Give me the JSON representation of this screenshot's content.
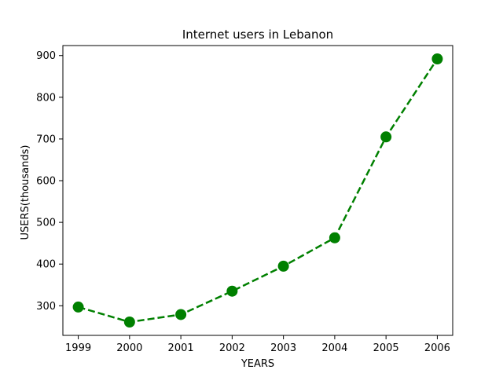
{
  "chart_data": {
    "type": "line",
    "title": "Internet users in Lebanon",
    "xlabel": "YEARS",
    "ylabel": "USERS(thousands)",
    "x": [
      1999,
      2000,
      2001,
      2002,
      2003,
      2004,
      2005,
      2006
    ],
    "series": [
      {
        "values": [
          297,
          261,
          279,
          335,
          395,
          463,
          705,
          892
        ]
      }
    ],
    "xlim": [
      1998.7,
      2006.3
    ],
    "ylim": [
      229,
      924
    ],
    "xticks": [
      1999,
      2000,
      2001,
      2002,
      2003,
      2004,
      2005,
      2006
    ],
    "yticks": [
      300,
      400,
      500,
      600,
      700,
      800,
      900
    ],
    "line_style": "dashed",
    "marker": "circle",
    "color": "#008000",
    "grid": false,
    "legend": false
  }
}
